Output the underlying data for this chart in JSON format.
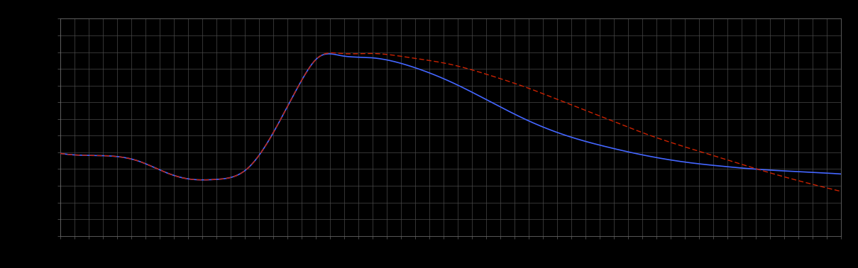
{
  "background_color": "#000000",
  "plot_bg_color": "#000000",
  "grid_color": "#4a4a4a",
  "blue_line_color": "#4466ff",
  "red_line_color": "#cc2200",
  "figsize": [
    12.09,
    3.78
  ],
  "dpi": 100,
  "n_grid_cols": 55,
  "n_grid_rows": 13,
  "xlim": [
    0,
    1
  ],
  "ylim": [
    0,
    1
  ],
  "blue_keypoints_x": [
    0.0,
    0.05,
    0.1,
    0.13,
    0.16,
    0.2,
    0.24,
    0.28,
    0.31,
    0.33,
    0.36,
    0.4,
    0.45,
    0.5,
    0.55,
    0.6,
    0.65,
    0.7,
    0.75,
    0.8,
    0.85,
    0.9,
    0.95,
    1.0
  ],
  "blue_keypoints_y": [
    0.38,
    0.37,
    0.345,
    0.3,
    0.265,
    0.26,
    0.31,
    0.52,
    0.72,
    0.82,
    0.83,
    0.82,
    0.78,
    0.71,
    0.62,
    0.53,
    0.46,
    0.41,
    0.37,
    0.34,
    0.32,
    0.305,
    0.295,
    0.285
  ],
  "red_keypoints_x": [
    0.0,
    0.05,
    0.1,
    0.13,
    0.16,
    0.2,
    0.24,
    0.28,
    0.31,
    0.33,
    0.36,
    0.4,
    0.45,
    0.5,
    0.55,
    0.6,
    0.65,
    0.7,
    0.75,
    0.8,
    0.85,
    0.9,
    0.95,
    1.0
  ],
  "red_keypoints_y": [
    0.38,
    0.37,
    0.345,
    0.3,
    0.265,
    0.26,
    0.31,
    0.52,
    0.72,
    0.82,
    0.84,
    0.84,
    0.82,
    0.79,
    0.74,
    0.68,
    0.61,
    0.54,
    0.47,
    0.41,
    0.355,
    0.3,
    0.25,
    0.205
  ]
}
